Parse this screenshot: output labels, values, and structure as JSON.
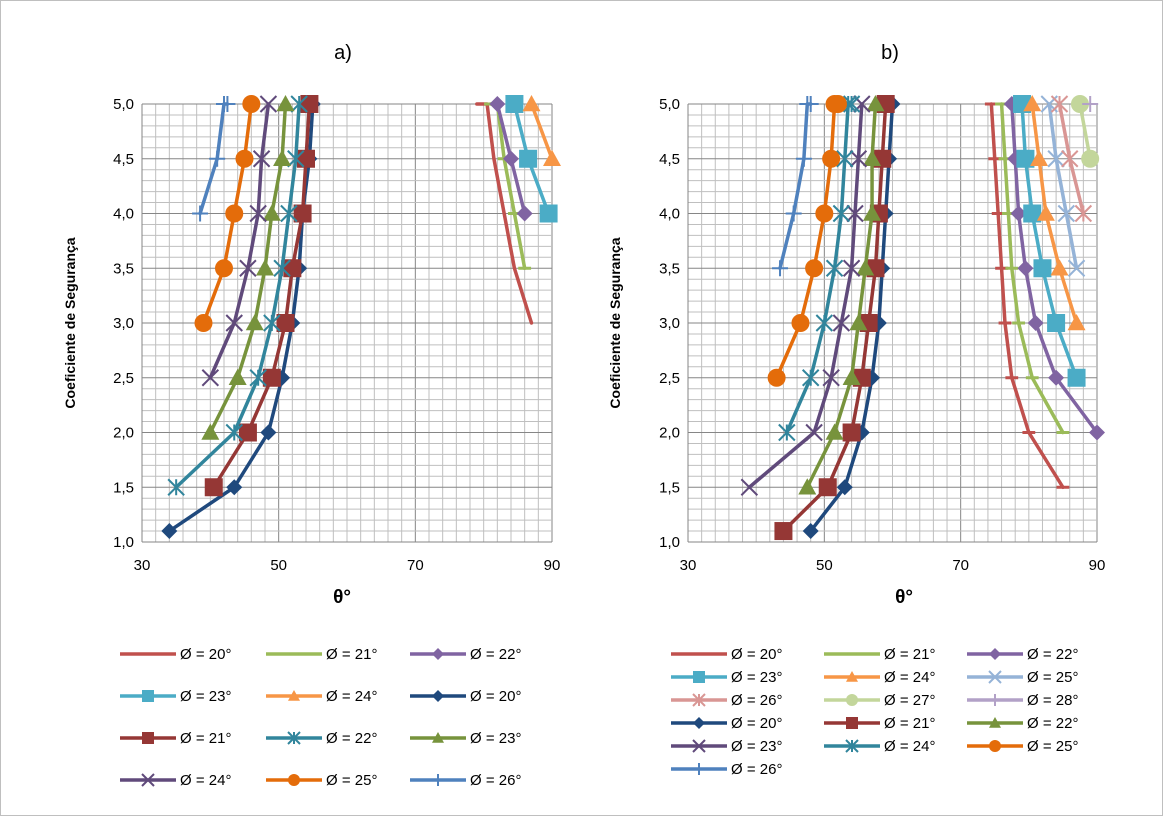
{
  "chart_data": [
    {
      "type": "line",
      "title": "a)",
      "xlabel": "θ°",
      "ylabel": "Coeficiente de Segurança",
      "xlim": [
        30,
        90
      ],
      "ylim": [
        1.0,
        5.0
      ],
      "xticks": [
        "30",
        "50",
        "70",
        "90"
      ],
      "yticks": [
        "1,0",
        "1,5",
        "2,0",
        "2,5",
        "3,0",
        "3,5",
        "4,0",
        "4,5",
        "5,0"
      ],
      "grid": true,
      "legend_position": "bottom",
      "legend_columns": 3,
      "series": [
        {
          "name": "Ø = 20°",
          "color": "#c0504d",
          "marker": "none",
          "x": [
            87,
            84.5,
            83,
            81.5,
            80.5,
            79
          ],
          "y": [
            3.0,
            3.5,
            4.0,
            4.5,
            5.0,
            5.0
          ]
        },
        {
          "name": "Ø = 21°",
          "color": "#9bbb59",
          "marker": "dash",
          "x": [
            86,
            84.5,
            83,
            82,
            81
          ],
          "y": [
            3.5,
            4.0,
            4.5,
            5.0,
            5.0
          ]
        },
        {
          "name": "Ø = 22°",
          "color": "#8064a2",
          "marker": "diamond",
          "x": [
            86,
            84,
            82
          ],
          "y": [
            4.0,
            4.5,
            5.0
          ]
        },
        {
          "name": "Ø = 23°",
          "color": "#4bacc6",
          "marker": "square",
          "x": [
            89.5,
            86.5,
            84.5
          ],
          "y": [
            4.0,
            4.5,
            5.0
          ]
        },
        {
          "name": "Ø = 24°",
          "color": "#f79646",
          "marker": "triangle",
          "x": [
            90,
            87
          ],
          "y": [
            4.5,
            5.0
          ]
        },
        {
          "name": "Ø = 20°",
          "color": "#1f497d",
          "marker": "diamond",
          "x": [
            34,
            43.5,
            48.5,
            50.5,
            52,
            53,
            53.5,
            54.5,
            55
          ],
          "y": [
            1.1,
            1.5,
            2.0,
            2.5,
            3.0,
            3.5,
            4.0,
            4.5,
            5.0
          ]
        },
        {
          "name": "Ø = 21°",
          "color": "#953735",
          "marker": "square",
          "x": [
            40.5,
            45.5,
            49,
            51,
            52,
            53.5,
            54,
            54.5
          ],
          "y": [
            1.5,
            2.0,
            2.5,
            3.0,
            3.5,
            4.0,
            4.5,
            5.0
          ]
        },
        {
          "name": "Ø = 22°",
          "color": "#31859c",
          "marker": "asterisk",
          "x": [
            35,
            43.5,
            47,
            49,
            50.5,
            51.5,
            52.5,
            53
          ],
          "y": [
            1.5,
            2.0,
            2.5,
            3.0,
            3.5,
            4.0,
            4.5,
            5.0
          ]
        },
        {
          "name": "Ø = 23°",
          "color": "#77933c",
          "marker": "triangle",
          "x": [
            40,
            44,
            46.5,
            48,
            49,
            50.5,
            51
          ],
          "y": [
            2.0,
            2.5,
            3.0,
            3.5,
            4.0,
            4.5,
            5.0
          ]
        },
        {
          "name": "Ø = 24°",
          "color": "#604a7b",
          "marker": "x",
          "x": [
            40,
            43.5,
            45.5,
            47,
            47.5,
            48.5
          ],
          "y": [
            2.5,
            3.0,
            3.5,
            4.0,
            4.5,
            5.0
          ]
        },
        {
          "name": "Ø = 25°",
          "color": "#e46c0a",
          "marker": "circle",
          "x": [
            39,
            42,
            43.5,
            45,
            46
          ],
          "y": [
            3.0,
            3.5,
            4.0,
            4.5,
            5.0
          ]
        },
        {
          "name": "Ø = 26°",
          "color": "#4f81bd",
          "marker": "plus",
          "x": [
            38.5,
            41,
            42,
            42.5
          ],
          "y": [
            4.0,
            4.5,
            5.0,
            5.0
          ]
        }
      ]
    },
    {
      "type": "line",
      "title": "b)",
      "xlabel": "θ°",
      "ylabel": "Coeficiente de Segurança",
      "xlim": [
        30,
        90
      ],
      "ylim": [
        1.0,
        5.0
      ],
      "xticks": [
        "30",
        "50",
        "70",
        "90"
      ],
      "yticks": [
        "1,0",
        "1,5",
        "2,0",
        "2,5",
        "3,0",
        "3,5",
        "4,0",
        "4,5",
        "5,0"
      ],
      "grid": true,
      "legend_position": "bottom",
      "legend_columns": 3,
      "series": [
        {
          "name": "Ø = 20°",
          "color": "#c0504d",
          "marker": "dash",
          "x": [
            85,
            80,
            77.5,
            76.5,
            76,
            75.5,
            75,
            74.5,
            74.5
          ],
          "y": [
            1.5,
            2.0,
            2.5,
            3.0,
            3.5,
            4.0,
            4.5,
            5.0,
            5.0
          ]
        },
        {
          "name": "Ø = 21°",
          "color": "#9bbb59",
          "marker": "dash",
          "x": [
            85,
            80.5,
            78.5,
            77.5,
            77,
            76.5,
            76,
            76
          ],
          "y": [
            2.0,
            2.5,
            3.0,
            3.5,
            4.0,
            4.5,
            5.0,
            5.0
          ]
        },
        {
          "name": "Ø = 22°",
          "color": "#8064a2",
          "marker": "diamond",
          "x": [
            90,
            84,
            81,
            79.5,
            78.5,
            78,
            77.5
          ],
          "y": [
            2.0,
            2.5,
            3.0,
            3.5,
            4.0,
            4.5,
            5.0
          ]
        },
        {
          "name": "Ø = 23°",
          "color": "#4bacc6",
          "marker": "square",
          "x": [
            87,
            84,
            82,
            80.5,
            79.5,
            79
          ],
          "y": [
            2.5,
            3.0,
            3.5,
            4.0,
            4.5,
            5.0
          ]
        },
        {
          "name": "Ø = 24°",
          "color": "#f79646",
          "marker": "triangle",
          "x": [
            87,
            84.5,
            82.5,
            81.5,
            80.5
          ],
          "y": [
            3.0,
            3.5,
            4.0,
            4.5,
            5.0
          ]
        },
        {
          "name": "Ø = 25°",
          "color": "#95b3d7",
          "marker": "x",
          "x": [
            87,
            85.5,
            84,
            83
          ],
          "y": [
            3.5,
            4.0,
            4.5,
            5.0
          ]
        },
        {
          "name": "Ø = 26°",
          "color": "#d99694",
          "marker": "asterisk",
          "x": [
            88,
            86,
            84.5
          ],
          "y": [
            4.0,
            4.5,
            5.0
          ]
        },
        {
          "name": "Ø = 27°",
          "color": "#c3d69b",
          "marker": "circle",
          "x": [
            89,
            87.5
          ],
          "y": [
            4.5,
            5.0
          ]
        },
        {
          "name": "Ø = 28°",
          "color": "#b2a1c7",
          "marker": "plus",
          "x": [
            89
          ],
          "y": [
            5.0
          ]
        },
        {
          "name": "Ø = 20°",
          "color": "#1f497d",
          "marker": "diamond",
          "x": [
            48,
            53,
            55.5,
            57,
            58,
            58.5,
            59,
            59.5,
            60
          ],
          "y": [
            1.1,
            1.5,
            2.0,
            2.5,
            3.0,
            3.5,
            4.0,
            4.5,
            5.0
          ]
        },
        {
          "name": "Ø = 21°",
          "color": "#953735",
          "marker": "square",
          "x": [
            44,
            50.5,
            54,
            55.5,
            56.5,
            57.5,
            58,
            58.5,
            59
          ],
          "y": [
            1.1,
            1.5,
            2.0,
            2.5,
            3.0,
            3.5,
            4.0,
            4.5,
            5.0
          ]
        },
        {
          "name": "Ø = 22°",
          "color": "#77933c",
          "marker": "triangle",
          "x": [
            47.5,
            51.5,
            54,
            55,
            56,
            57,
            57,
            57.5
          ],
          "y": [
            1.5,
            2.0,
            2.5,
            3.0,
            3.5,
            4.0,
            4.5,
            5.0
          ]
        },
        {
          "name": "Ø = 23°",
          "color": "#604a7b",
          "marker": "x",
          "x": [
            39,
            48.5,
            51,
            52.5,
            54,
            54.5,
            55,
            55.5
          ],
          "y": [
            1.5,
            2.0,
            2.5,
            3.0,
            3.5,
            4.0,
            4.5,
            5.0
          ]
        },
        {
          "name": "Ø = 24°",
          "color": "#31859c",
          "marker": "asterisk",
          "x": [
            44.5,
            48,
            50,
            51.5,
            52.5,
            53,
            53.5,
            54
          ],
          "y": [
            2.0,
            2.5,
            3.0,
            3.5,
            4.0,
            4.5,
            5.0,
            5.0
          ]
        },
        {
          "name": "Ø = 25°",
          "color": "#e46c0a",
          "marker": "circle",
          "x": [
            43,
            46.5,
            48.5,
            50,
            51,
            51.5,
            52
          ],
          "y": [
            2.5,
            3.0,
            3.5,
            4.0,
            4.5,
            5.0,
            5.0
          ]
        },
        {
          "name": "Ø = 26°",
          "color": "#4f81bd",
          "marker": "plus",
          "x": [
            43.5,
            45.5,
            47,
            47.5,
            48
          ],
          "y": [
            3.5,
            4.0,
            4.5,
            5.0,
            5.0
          ]
        }
      ]
    }
  ]
}
